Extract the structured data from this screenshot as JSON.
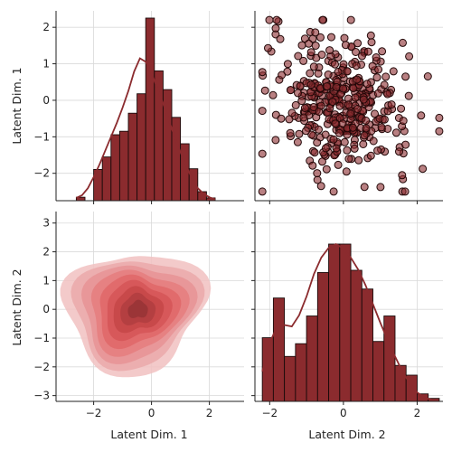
{
  "chart_data": {
    "type": "pairplot",
    "variables": [
      "Latent Dim. 1",
      "Latent Dim. 2"
    ],
    "colors": {
      "bar_fill": "#8b2b2e",
      "bar_edge": "#1a0a0a",
      "kde_line": "#8b2b2e",
      "scatter_fill": "#8b2b2e",
      "scatter_edge": "#220808",
      "density_levels": [
        "#f1c1c1",
        "#eaa9aa",
        "#e89395",
        "#e57c7e",
        "#df6769",
        "#d55557",
        "#c64748",
        "#b03d3f",
        "#963436"
      ]
    },
    "grid": true,
    "panels": [
      {
        "id": "hist-dim1",
        "type": "histogram",
        "variable": "Latent Dim. 1",
        "bin_edges": [
          -2.6,
          -2.3,
          -2.0,
          -1.7,
          -1.4,
          -1.1,
          -0.8,
          -0.5,
          -0.2,
          0.1,
          0.4,
          0.7,
          1.0,
          1.3,
          1.6,
          1.9,
          2.2
        ],
        "heights": [
          0.05,
          0.0,
          0.45,
          0.63,
          0.95,
          1.0,
          1.26,
          1.54,
          2.63,
          1.87,
          1.6,
          1.2,
          0.82,
          0.46,
          0.13,
          0.04
        ],
        "kde": {
          "x": [
            -2.6,
            -2.4,
            -2.2,
            -2.0,
            -1.8,
            -1.6,
            -1.4,
            -1.2,
            -1.0,
            -0.8,
            -0.6,
            -0.4,
            -0.2,
            0.0,
            0.2,
            0.4,
            0.6,
            0.8,
            1.0,
            1.2,
            1.4,
            1.6,
            1.8,
            2.0,
            2.2
          ],
          "y": [
            0.04,
            0.08,
            0.18,
            0.34,
            0.52,
            0.72,
            0.92,
            1.12,
            1.34,
            1.58,
            1.86,
            2.05,
            2.0,
            1.84,
            1.62,
            1.4,
            1.16,
            0.92,
            0.7,
            0.5,
            0.32,
            0.18,
            0.1,
            0.05,
            0.02
          ]
        },
        "xlim": [
          -3.3,
          3.2
        ],
        "ylim": [
          -2.75,
          2.45
        ],
        "yticks": [
          "−2",
          "−1",
          "0",
          "1",
          "2"
        ],
        "ylabel": "Latent Dim. 1"
      },
      {
        "id": "scatter-dim2-vs-dim1",
        "type": "scatter",
        "x_variable": "Latent Dim. 2",
        "y_variable": "Latent Dim. 1",
        "xlim": [
          -2.4,
          2.7
        ],
        "ylim": [
          -2.75,
          2.45
        ],
        "n_points": 400,
        "x_range": [
          -2.2,
          2.6
        ],
        "y_range": [
          -2.5,
          2.2
        ],
        "correlation": -0.2
      },
      {
        "id": "kde-dim1-vs-dim2",
        "type": "kde2d",
        "x_variable": "Latent Dim. 1",
        "y_variable": "Latent Dim. 2",
        "xlim": [
          -3.3,
          3.2
        ],
        "ylim": [
          -3.2,
          3.4
        ],
        "peak": [
          -0.6,
          0.1
        ],
        "spread": [
          0.95,
          0.85
        ],
        "levels": 9,
        "xticks": [
          "−2",
          "0",
          "2"
        ],
        "yticks": [
          "−3",
          "−2",
          "−1",
          "0",
          "1",
          "2",
          "3"
        ],
        "xlabel": "Latent Dim. 1",
        "ylabel": "Latent Dim. 2"
      },
      {
        "id": "hist-dim2",
        "type": "histogram",
        "variable": "Latent Dim. 2",
        "bin_edges": [
          -2.2,
          -1.9,
          -1.6,
          -1.3,
          -1.0,
          -0.7,
          -0.4,
          -0.1,
          0.2,
          0.5,
          0.8,
          1.1,
          1.4,
          1.7,
          2.0,
          2.3,
          2.6
        ],
        "heights": [
          0.85,
          1.38,
          0.6,
          0.77,
          1.14,
          1.72,
          2.1,
          2.1,
          1.75,
          1.5,
          0.8,
          1.14,
          0.48,
          0.35,
          0.1,
          0.04
        ],
        "kde": {
          "x": [
            -2.2,
            -2.0,
            -1.8,
            -1.6,
            -1.4,
            -1.2,
            -1.0,
            -0.8,
            -0.6,
            -0.4,
            -0.2,
            0.0,
            0.2,
            0.4,
            0.6,
            0.8,
            1.0,
            1.2,
            1.4,
            1.6,
            1.8,
            2.0,
            2.2,
            2.4
          ],
          "y": [
            0.4,
            0.78,
            1.0,
            1.02,
            1.0,
            1.15,
            1.4,
            1.7,
            1.92,
            2.05,
            2.1,
            2.04,
            1.92,
            1.76,
            1.55,
            1.3,
            1.05,
            0.82,
            0.6,
            0.4,
            0.24,
            0.12,
            0.05,
            0.02
          ]
        },
        "xlim": [
          -2.4,
          2.7
        ],
        "xticks": [
          "−2",
          "0",
          "2"
        ],
        "xlabel": "Latent Dim. 2"
      }
    ]
  }
}
